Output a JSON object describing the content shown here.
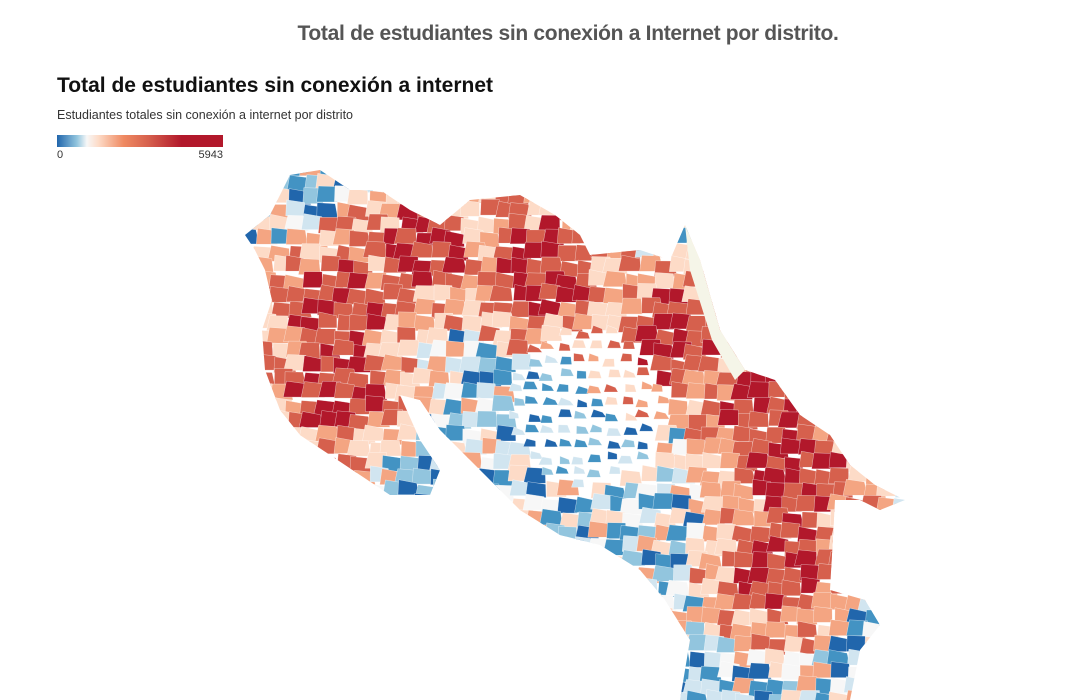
{
  "page_title": "Total de estudiantes sin conexión a Internet por distrito.",
  "chart": {
    "title": "Total de estudiantes sin conexión a internet",
    "subtitle": "Estudiantes totales sin conexión a internet por distrito"
  },
  "legend": {
    "min": "0",
    "max": "5943"
  },
  "colors": {
    "scale": [
      "#2166ac",
      "#4393c3",
      "#92c5de",
      "#d1e5f0",
      "#f7f7f7",
      "#fddbc7",
      "#f4a582",
      "#d6604d",
      "#b2182b"
    ],
    "sea_coast_land": "#f5f5e8"
  },
  "chart_data": {
    "type": "choropleth",
    "title": "Total de estudiantes sin conexión a internet",
    "subtitle": "Estudiantes totales sin conexión a internet por distrito",
    "value_range": [
      0,
      5943
    ],
    "unit": "estudiantes"
  }
}
